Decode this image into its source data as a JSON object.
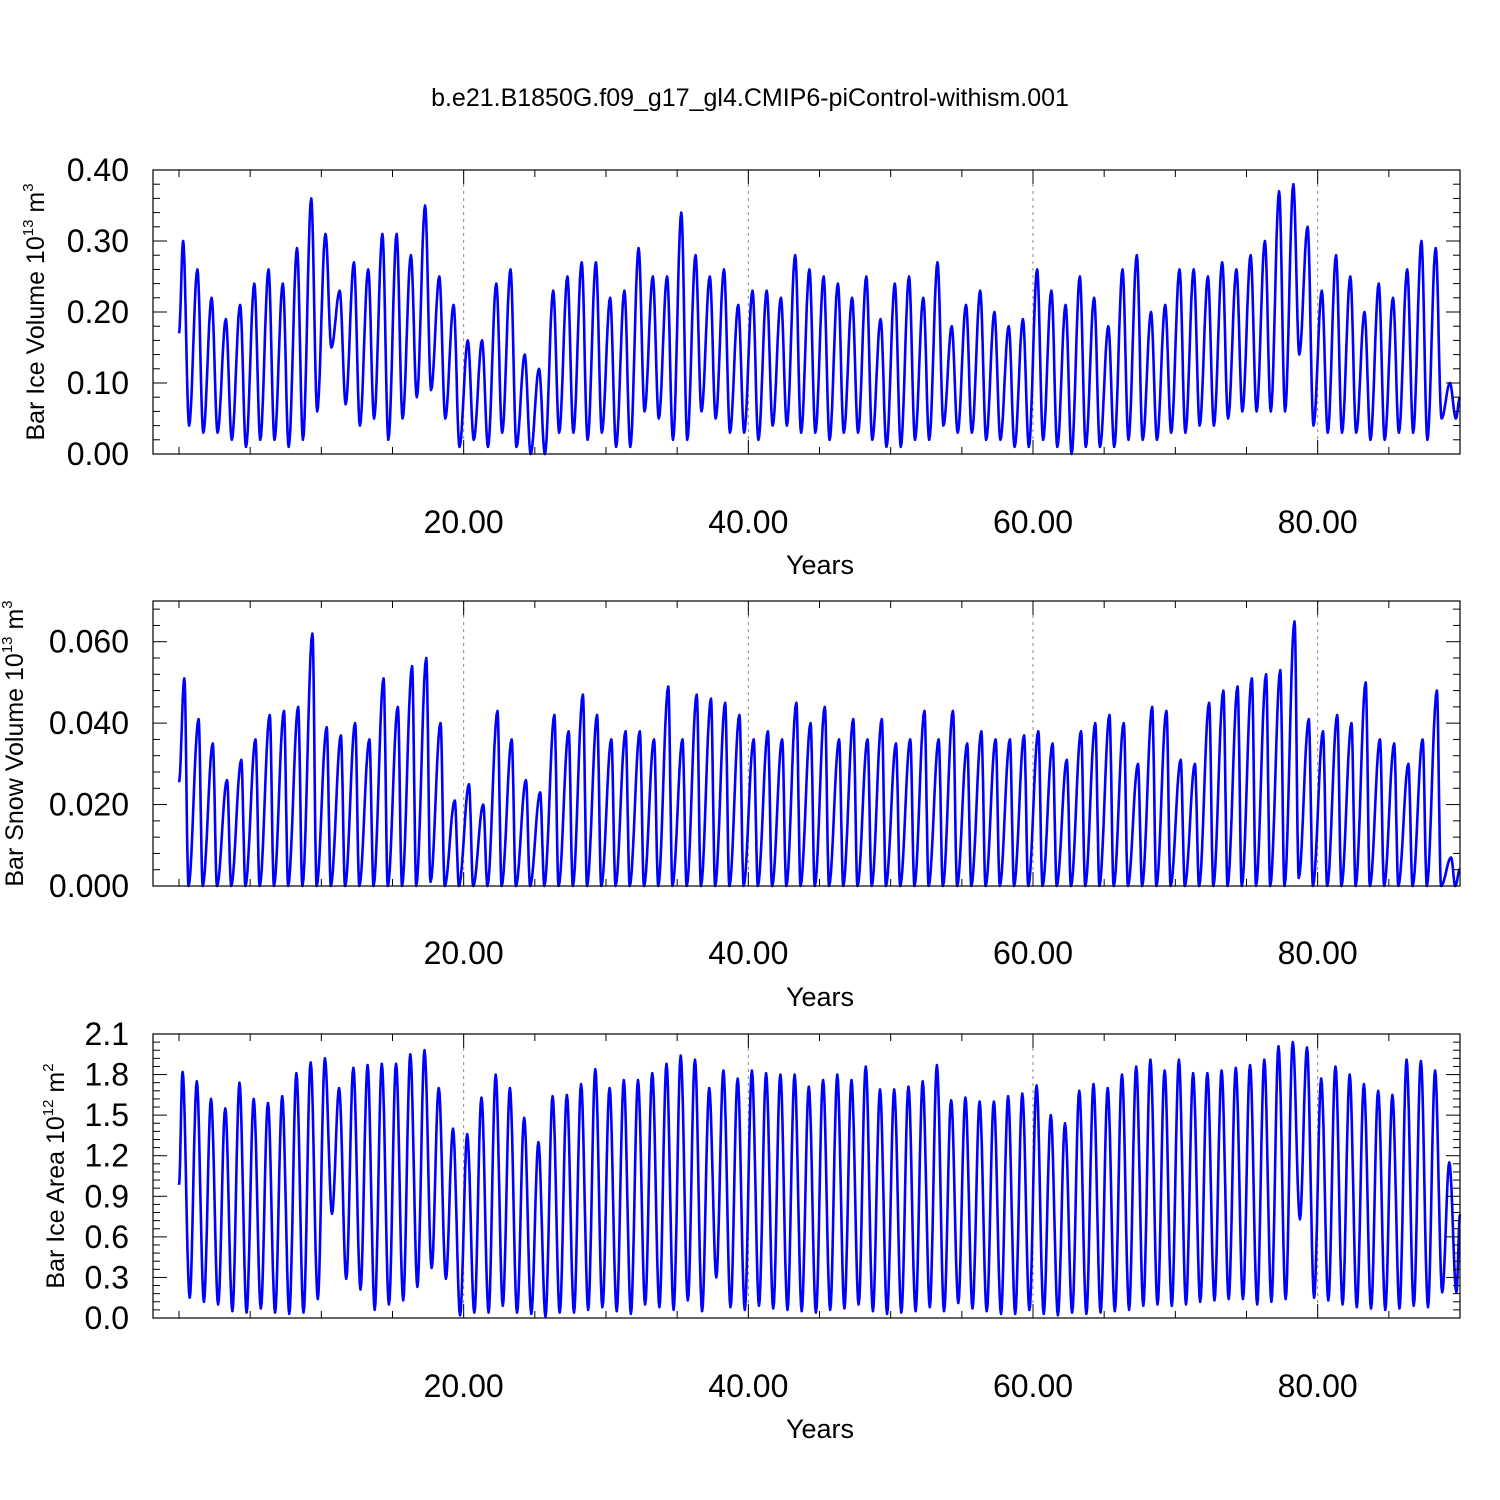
{
  "page_title": "b.e21.B1850G.f09_g17_gl4.CMIP6-piControl-withism.001",
  "colors": {
    "series": "#0000ff",
    "axis": "#000000",
    "grid": "#888888"
  },
  "chart_data": [
    {
      "type": "line",
      "title": "b.e21.B1850G.f09_g17_gl4.CMIP6-piControl-withism.001",
      "xlabel": "Years",
      "ylabel": {
        "text": "Bar Ice Volume 10",
        "exp": "13",
        "unit": " m",
        "unit_exp": "3"
      },
      "xlim": [
        0,
        90
      ],
      "ylim": [
        0,
        0.4
      ],
      "xticks": [
        20,
        40,
        60,
        80
      ],
      "xtick_labels": [
        "20.00",
        "40.00",
        "60.00",
        "80.00"
      ],
      "yticks": [
        0,
        0.1,
        0.2,
        0.3,
        0.4
      ],
      "ytick_labels": [
        "0.00",
        "0.10",
        "0.20",
        "0.30",
        "0.40"
      ],
      "grid": "x-dashed",
      "series": [
        {
          "color": "#0000ff",
          "cycle": {
            "period_years": 1,
            "peak_month": 3.5,
            "trough_month": 8.5
          },
          "annual_max": [
            0.3,
            0.26,
            0.22,
            0.19,
            0.21,
            0.24,
            0.26,
            0.24,
            0.29,
            0.36,
            0.31,
            0.23,
            0.27,
            0.26,
            0.31,
            0.31,
            0.28,
            0.35,
            0.25,
            0.21,
            0.16,
            0.16,
            0.24,
            0.26,
            0.14,
            0.12,
            0.23,
            0.25,
            0.27,
            0.27,
            0.22,
            0.23,
            0.29,
            0.25,
            0.25,
            0.34,
            0.28,
            0.25,
            0.26,
            0.21,
            0.23,
            0.23,
            0.22,
            0.28,
            0.26,
            0.25,
            0.24,
            0.22,
            0.25,
            0.19,
            0.24,
            0.25,
            0.22,
            0.27,
            0.18,
            0.21,
            0.23,
            0.2,
            0.18,
            0.19,
            0.26,
            0.23,
            0.21,
            0.25,
            0.22,
            0.18,
            0.26,
            0.28,
            0.2,
            0.21,
            0.26,
            0.26,
            0.25,
            0.27,
            0.26,
            0.28,
            0.3,
            0.37,
            0.38,
            0.32,
            0.23,
            0.28,
            0.25,
            0.2,
            0.24,
            0.22,
            0.26,
            0.3,
            0.29,
            0.1
          ],
          "annual_min": [
            0.04,
            0.03,
            0.03,
            0.02,
            0.01,
            0.02,
            0.02,
            0.01,
            0.02,
            0.06,
            0.15,
            0.07,
            0.04,
            0.05,
            0.02,
            0.05,
            0.08,
            0.09,
            0.05,
            0.01,
            0.02,
            0.01,
            0.03,
            0.01,
            0.0,
            0.0,
            0.03,
            0.03,
            0.02,
            0.03,
            0.01,
            0.01,
            0.06,
            0.05,
            0.02,
            0.02,
            0.06,
            0.05,
            0.03,
            0.03,
            0.02,
            0.04,
            0.04,
            0.03,
            0.03,
            0.02,
            0.03,
            0.03,
            0.02,
            0.01,
            0.01,
            0.02,
            0.02,
            0.04,
            0.03,
            0.03,
            0.02,
            0.02,
            0.01,
            0.01,
            0.02,
            0.01,
            0.0,
            0.01,
            0.01,
            0.01,
            0.02,
            0.02,
            0.02,
            0.03,
            0.03,
            0.04,
            0.04,
            0.05,
            0.06,
            0.06,
            0.06,
            0.06,
            0.14,
            0.04,
            0.03,
            0.03,
            0.03,
            0.02,
            0.02,
            0.03,
            0.03,
            0.02,
            0.05,
            0.05
          ]
        }
      ]
    },
    {
      "type": "line",
      "xlabel": "Years",
      "ylabel": {
        "text": "Bar Snow Volume 10",
        "exp": "13",
        "unit": " m",
        "unit_exp": "3"
      },
      "xlim": [
        0,
        90
      ],
      "ylim": [
        0,
        0.07
      ],
      "xticks": [
        20,
        40,
        60,
        80
      ],
      "xtick_labels": [
        "20.00",
        "40.00",
        "60.00",
        "80.00"
      ],
      "yticks": [
        0,
        0.02,
        0.04,
        0.06
      ],
      "ytick_labels": [
        "0.000",
        "0.020",
        "0.040",
        "0.060"
      ],
      "grid": "x-dashed",
      "series": [
        {
          "color": "#0000ff",
          "cycle": {
            "period_years": 1,
            "peak_month": 4.5,
            "trough_month": 8.0
          },
          "annual_max": [
            0.051,
            0.041,
            0.035,
            0.026,
            0.031,
            0.036,
            0.042,
            0.043,
            0.044,
            0.062,
            0.039,
            0.037,
            0.04,
            0.036,
            0.051,
            0.044,
            0.054,
            0.056,
            0.04,
            0.021,
            0.025,
            0.02,
            0.043,
            0.036,
            0.026,
            0.023,
            0.042,
            0.038,
            0.047,
            0.042,
            0.036,
            0.038,
            0.038,
            0.036,
            0.049,
            0.036,
            0.047,
            0.046,
            0.045,
            0.042,
            0.036,
            0.038,
            0.036,
            0.045,
            0.04,
            0.044,
            0.036,
            0.041,
            0.036,
            0.041,
            0.035,
            0.036,
            0.043,
            0.036,
            0.043,
            0.035,
            0.038,
            0.036,
            0.036,
            0.037,
            0.038,
            0.035,
            0.031,
            0.038,
            0.04,
            0.042,
            0.04,
            0.03,
            0.044,
            0.043,
            0.031,
            0.03,
            0.045,
            0.048,
            0.049,
            0.051,
            0.052,
            0.053,
            0.065,
            0.041,
            0.038,
            0.042,
            0.04,
            0.05,
            0.036,
            0.035,
            0.03,
            0.036,
            0.048,
            0.007
          ],
          "annual_min": [
            0.0,
            0.0,
            0.0,
            0.0,
            0.0,
            0.0,
            0.0,
            0.0,
            0.0,
            0.0,
            0.0,
            0.0,
            0.0,
            0.0,
            0.0,
            0.0,
            0.0,
            0.001,
            0.0,
            0.0,
            0.0,
            0.0,
            0.0,
            0.0,
            0.0,
            0.0,
            0.0,
            0.0,
            0.0,
            0.0,
            0.0,
            0.0,
            0.0,
            0.0,
            0.0,
            0.0,
            0.0,
            0.0,
            0.0,
            0.0,
            0.0,
            0.0,
            0.0,
            0.0,
            0.0,
            0.0,
            0.0,
            0.0,
            0.0,
            0.0,
            0.0,
            0.0,
            0.0,
            0.0,
            0.0,
            0.0,
            0.0,
            0.0,
            0.0,
            0.0,
            0.0,
            0.0,
            0.0,
            0.0,
            0.0,
            0.0,
            0.0,
            0.0,
            0.0,
            0.0,
            0.0,
            0.0,
            0.0,
            0.0,
            0.0,
            0.0,
            0.0,
            0.0,
            0.002,
            0.0,
            0.0,
            0.0,
            0.0,
            0.0,
            0.0,
            0.0,
            0.0,
            0.0,
            0.0,
            0.0
          ]
        }
      ]
    },
    {
      "type": "line",
      "xlabel": "Years",
      "ylabel": {
        "text": "Bar Ice Area 10",
        "exp": "12",
        "unit": " m",
        "unit_exp": "2"
      },
      "xlim": [
        0,
        90
      ],
      "ylim": [
        0,
        2.1
      ],
      "xticks": [
        20,
        40,
        60,
        80
      ],
      "xtick_labels": [
        "20.00",
        "40.00",
        "60.00",
        "80.00"
      ],
      "yticks": [
        0,
        0.3,
        0.6,
        0.9,
        1.2,
        1.5,
        1.8,
        2.1
      ],
      "ytick_labels": [
        "0.0",
        "0.3",
        "0.6",
        "0.9",
        "1.2",
        "1.5",
        "1.8",
        "2.1"
      ],
      "grid": "x-dashed",
      "series": [
        {
          "color": "#0000ff",
          "cycle": {
            "period_years": 1,
            "peak_month": 3.0,
            "trough_month": 9.0
          },
          "annual_max": [
            1.82,
            1.75,
            1.62,
            1.55,
            1.74,
            1.62,
            1.59,
            1.64,
            1.81,
            1.89,
            1.92,
            1.7,
            1.85,
            1.87,
            1.88,
            1.88,
            1.95,
            1.98,
            1.7,
            1.4,
            1.36,
            1.63,
            1.8,
            1.7,
            1.48,
            1.3,
            1.64,
            1.65,
            1.73,
            1.84,
            1.7,
            1.76,
            1.76,
            1.81,
            1.88,
            1.94,
            1.91,
            1.7,
            1.83,
            1.77,
            1.83,
            1.81,
            1.8,
            1.8,
            1.71,
            1.76,
            1.8,
            1.76,
            1.86,
            1.69,
            1.69,
            1.71,
            1.75,
            1.87,
            1.61,
            1.63,
            1.6,
            1.6,
            1.64,
            1.66,
            1.72,
            1.5,
            1.44,
            1.68,
            1.73,
            1.7,
            1.8,
            1.86,
            1.91,
            1.83,
            1.91,
            1.81,
            1.81,
            1.83,
            1.85,
            1.87,
            1.91,
            2.01,
            2.04,
            2.0,
            1.77,
            1.86,
            1.8,
            1.73,
            1.68,
            1.65,
            1.91,
            1.9,
            1.83,
            1.15
          ],
          "annual_min": [
            0.15,
            0.12,
            0.1,
            0.05,
            0.04,
            0.07,
            0.04,
            0.03,
            0.04,
            0.14,
            0.77,
            0.29,
            0.21,
            0.06,
            0.1,
            0.13,
            0.23,
            0.37,
            0.29,
            0.02,
            0.04,
            0.04,
            0.09,
            0.04,
            0.03,
            0.01,
            0.04,
            0.04,
            0.06,
            0.08,
            0.05,
            0.03,
            0.1,
            0.08,
            0.06,
            0.13,
            0.05,
            0.3,
            0.08,
            0.06,
            0.09,
            0.07,
            0.06,
            0.05,
            0.04,
            0.06,
            0.07,
            0.1,
            0.05,
            0.03,
            0.04,
            0.05,
            0.08,
            0.05,
            0.11,
            0.07,
            0.05,
            0.03,
            0.03,
            0.06,
            0.03,
            0.02,
            0.04,
            0.03,
            0.04,
            0.05,
            0.06,
            0.09,
            0.1,
            0.09,
            0.1,
            0.12,
            0.13,
            0.14,
            0.14,
            0.1,
            0.12,
            0.14,
            0.73,
            0.15,
            0.13,
            0.1,
            0.08,
            0.07,
            0.06,
            0.07,
            0.09,
            0.08,
            0.19,
            0.19
          ]
        }
      ]
    }
  ]
}
